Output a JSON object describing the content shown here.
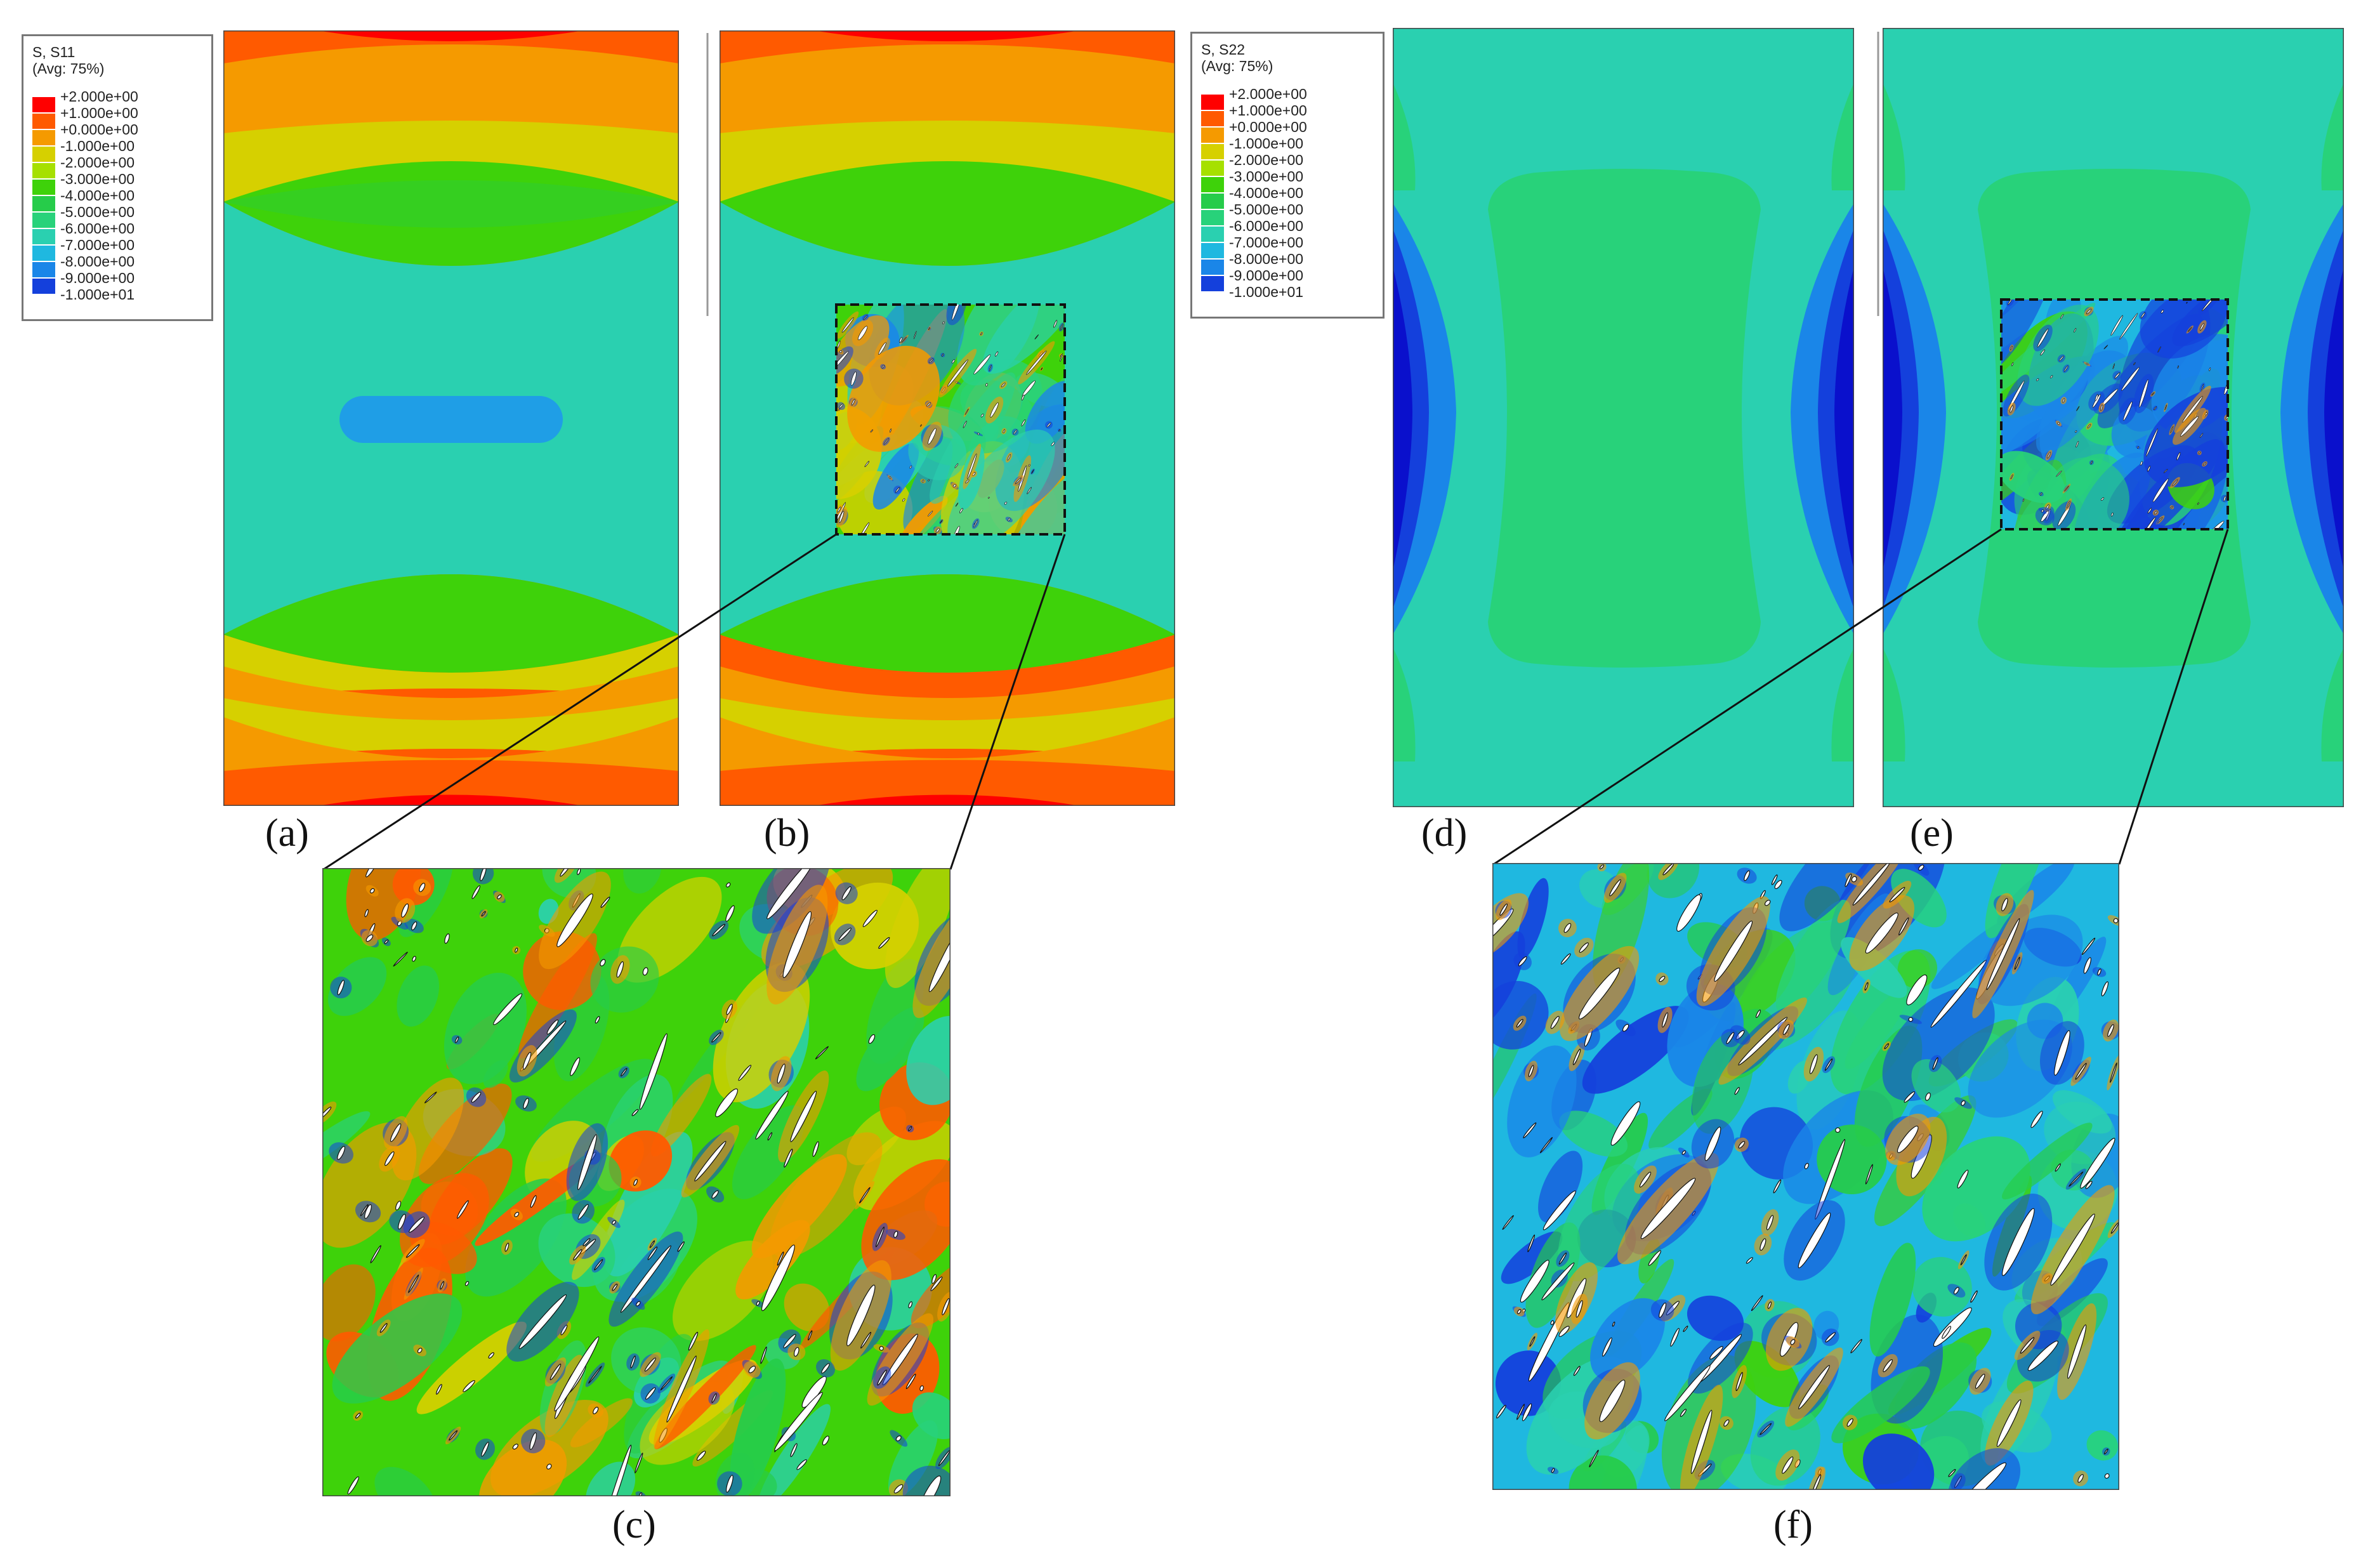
{
  "legends": [
    {
      "title": "S, S11",
      "subtitle": "(Avg: 75%)",
      "values": [
        "+2.000e+00",
        "+1.000e+00",
        "+0.000e+00",
        "-1.000e+00",
        "-2.000e+00",
        "-3.000e+00",
        "-4.000e+00",
        "-5.000e+00",
        "-6.000e+00",
        "-7.000e+00",
        "-8.000e+00",
        "-9.000e+00",
        "-1.000e+01"
      ]
    },
    {
      "title": "S, S22",
      "subtitle": "(Avg: 75%)",
      "values": [
        "+2.000e+00",
        "+1.000e+00",
        "+0.000e+00",
        "-1.000e+00",
        "-2.000e+00",
        "-3.000e+00",
        "-4.000e+00",
        "-5.000e+00",
        "-6.000e+00",
        "-7.000e+00",
        "-8.000e+00",
        "-9.000e+00",
        "-1.000e+01"
      ]
    }
  ],
  "colormap": [
    "#ff0000",
    "#ff5a00",
    "#f59a00",
    "#d6d000",
    "#a6e000",
    "#3ed20a",
    "#26cc4a",
    "#28d27a",
    "#2ad0b0",
    "#1fb8e0",
    "#1a86e8",
    "#1440dc",
    "#0a10cc"
  ],
  "captions": {
    "a": "(a)",
    "b": "(b)",
    "c": "(c)",
    "d": "(d)",
    "e": "(e)",
    "f": "(f)"
  },
  "colors": {
    "void": "#ffffff",
    "crack_edge": "#111111",
    "frame": "#444444"
  }
}
